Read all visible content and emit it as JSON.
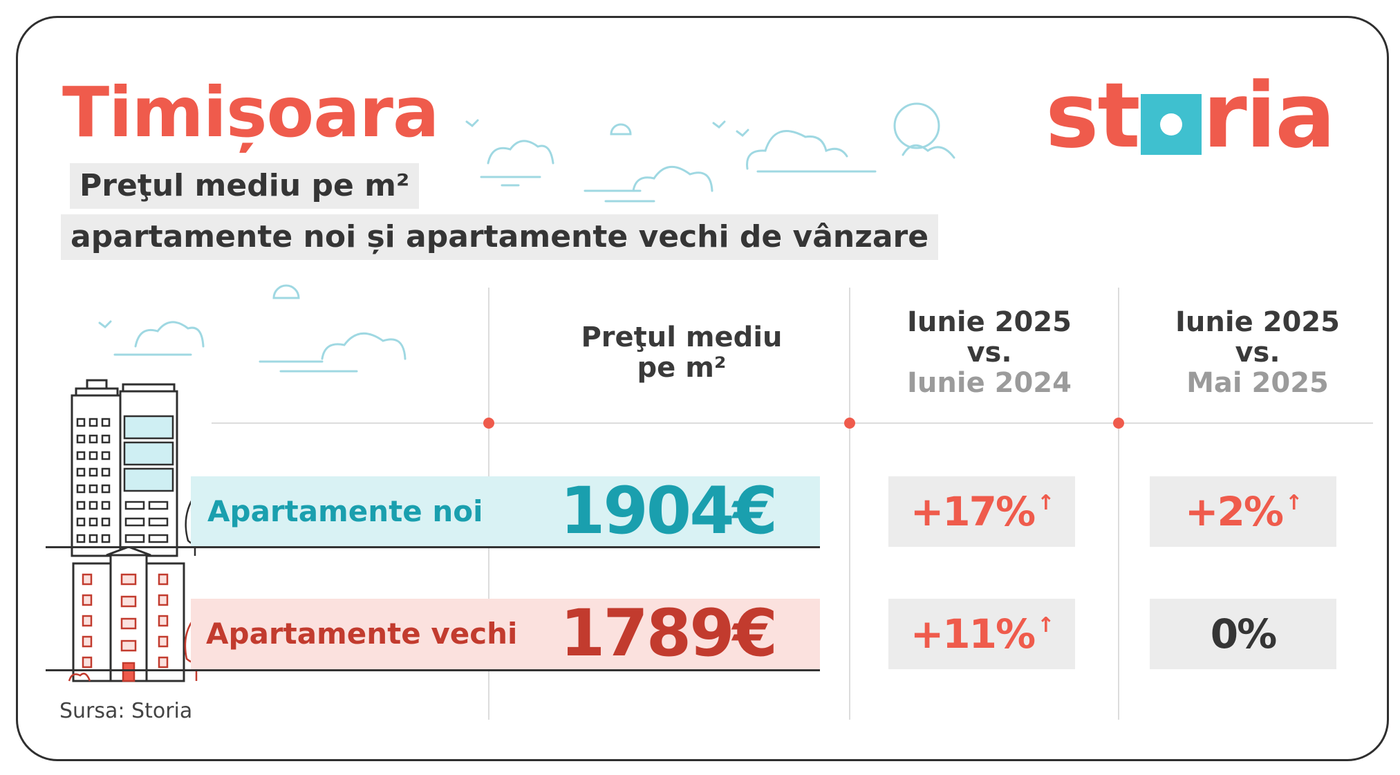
{
  "header": {
    "city": "Timișoara",
    "subtitle_line1": "Preţul mediu pe m²",
    "subtitle_line2": "apartamente noi și apartamente vechi de vânzare"
  },
  "logo": {
    "before": "st",
    "after": "ria"
  },
  "table": {
    "columns": [
      {
        "line1": "Preţul mediu",
        "line2": "pe m²"
      },
      {
        "line1": "Iunie 2025",
        "line2": "vs.",
        "line3": "Iunie 2024"
      },
      {
        "line1": "Iunie 2025",
        "line2": "vs.",
        "line3": "Mai 2025"
      }
    ],
    "rows": [
      {
        "label": "Apartamente noi",
        "price": "1904€",
        "yoy": "+17%",
        "yoy_arrow": "↑",
        "mom": "+2%",
        "mom_arrow": "↑"
      },
      {
        "label": "Apartamente vechi",
        "price": "1789€",
        "yoy": "+11%",
        "yoy_arrow": "↑",
        "mom": "0%",
        "mom_arrow": ""
      }
    ]
  },
  "footer": {
    "source": "Sursa: Storia"
  },
  "colors": {
    "accent": "#ef5b4c",
    "teal": "#1a9fae",
    "dark_red": "#c23b2e",
    "cloud": "#9fd8e2"
  },
  "icons": [
    "building-new-icon",
    "building-old-icon",
    "tree-icon",
    "cloud-icon",
    "bird-icon",
    "sun-icon"
  ]
}
